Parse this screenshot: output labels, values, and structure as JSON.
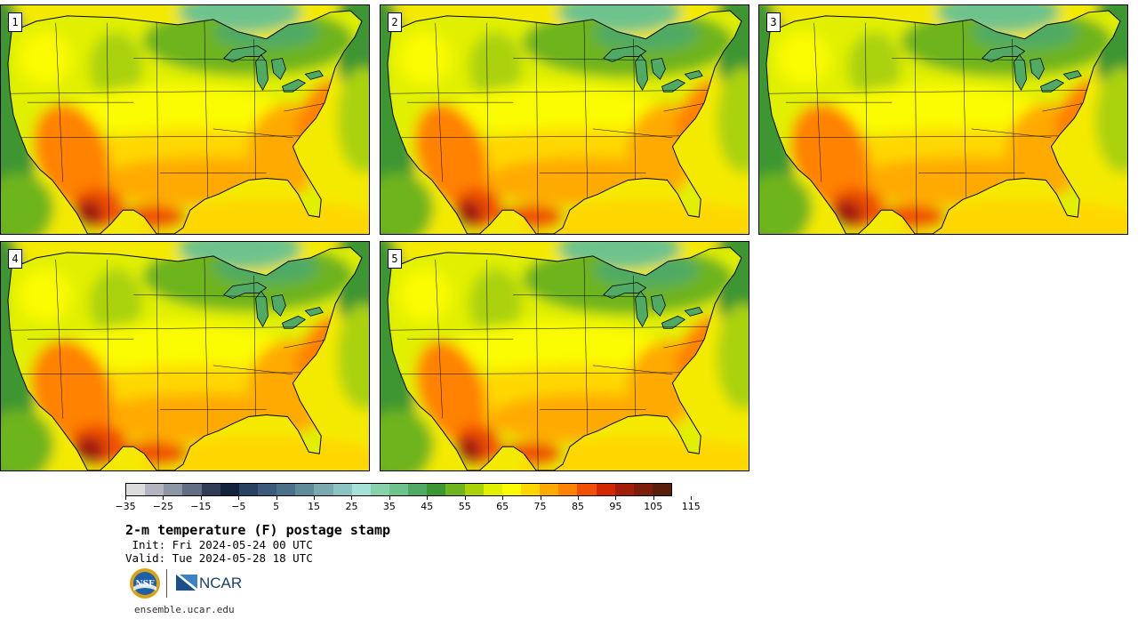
{
  "panels": [
    {
      "label": "1"
    },
    {
      "label": "2"
    },
    {
      "label": "3"
    },
    {
      "label": "4"
    },
    {
      "label": "5"
    }
  ],
  "colorbar": {
    "colors": [
      "#dcdcdc",
      "#b4b4c0",
      "#8c96a6",
      "#646e82",
      "#323c54",
      "#14233c",
      "#28425f",
      "#3c5a7a",
      "#4b7087",
      "#5f8c96",
      "#78aaaf",
      "#8cc3c3",
      "#a5e1d7",
      "#87d2aa",
      "#6ec38c",
      "#50aa64",
      "#3c9632",
      "#6eb41e",
      "#aad20a",
      "#e1f000",
      "#fafa00",
      "#ffd700",
      "#ffaa00",
      "#ff8200",
      "#f05000",
      "#d22800",
      "#a01e0a",
      "#7d1e0a",
      "#5a1e0a"
    ],
    "tick_labels": [
      "−35",
      "−25",
      "−15",
      "−5",
      "5",
      "15",
      "25",
      "35",
      "45",
      "55",
      "65",
      "75",
      "85",
      "95",
      "105",
      "115"
    ]
  },
  "title": "2-m temperature (F) postage stamp",
  "init_text": " Init: Fri 2024-05-24 00 UTC",
  "valid_text": "Valid: Tue 2024-05-28 18 UTC",
  "logos": {
    "left": "NSF",
    "right": "NCAR"
  },
  "site": "ensemble.ucar.edu"
}
